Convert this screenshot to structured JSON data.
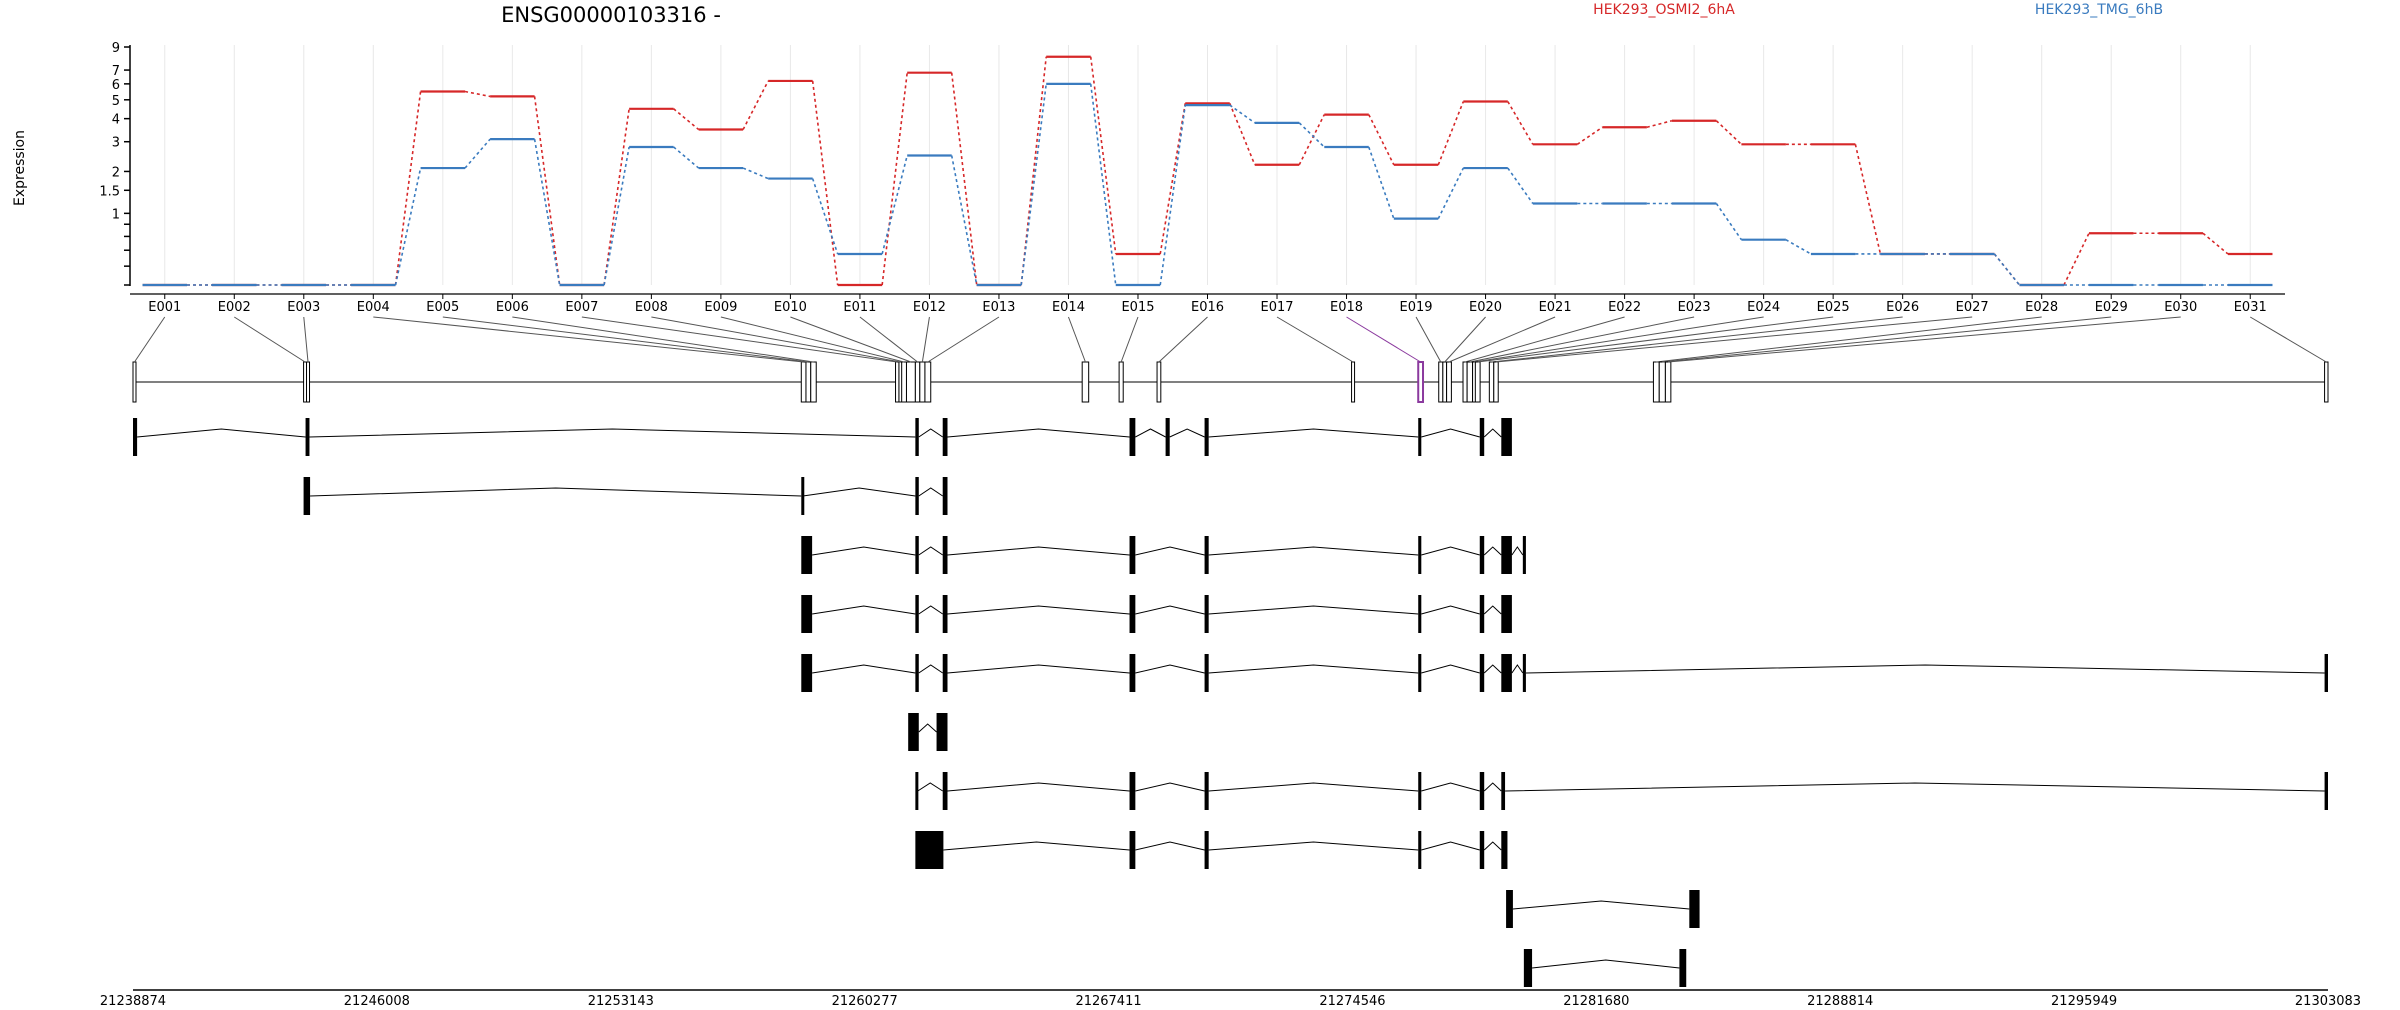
{
  "title": "ENSG00000103316 -",
  "colors": {
    "series_a": "#d62728",
    "series_b": "#3a7bbf",
    "highlight": "#8b3a9e",
    "grid": "#e8e8e8",
    "axis": "#000000"
  },
  "chart_data": {
    "type": "line",
    "ylabel": "Expression",
    "yscale": "log(1+y)",
    "ylim": [
      0,
      9
    ],
    "yticks": [
      {
        "v": 9,
        "label": "9"
      },
      {
        "v": 7,
        "label": "7"
      },
      {
        "v": 6,
        "label": "6"
      },
      {
        "v": 5,
        "label": "5"
      },
      {
        "v": 4,
        "label": "4"
      },
      {
        "v": 3,
        "label": "3"
      },
      {
        "v": 2,
        "label": "2"
      },
      {
        "v": 1.5,
        "label": "1.5"
      },
      {
        "v": 1,
        "label": "1"
      },
      {
        "v": 0.8,
        "label": ""
      },
      {
        "v": 0.6,
        "label": ""
      },
      {
        "v": 0.4,
        "label": ""
      },
      {
        "v": 0.2,
        "label": ""
      },
      {
        "v": 0,
        "label": ""
      }
    ],
    "categories": [
      "E001",
      "E002",
      "E003",
      "E004",
      "E005",
      "E006",
      "E007",
      "E008",
      "E009",
      "E010",
      "E011",
      "E012",
      "E013",
      "E014",
      "E015",
      "E016",
      "E017",
      "E018",
      "E019",
      "E020",
      "E021",
      "E022",
      "E023",
      "E024",
      "E025",
      "E026",
      "E027",
      "E028",
      "E029",
      "E030",
      "E031"
    ],
    "series": [
      {
        "name": "HEK293_OSMI2_6hA",
        "color": "#d62728",
        "values": [
          0,
          0,
          0,
          0,
          5.5,
          5.2,
          0,
          4.5,
          3.5,
          6.2,
          0,
          6.8,
          0,
          8.1,
          0.35,
          4.8,
          2.2,
          4.2,
          2.2,
          4.9,
          2.9,
          3.6,
          3.9,
          2.9,
          2.9,
          0.35,
          0.35,
          0,
          0.65,
          0.65,
          0.35
        ]
      },
      {
        "name": "HEK293_TMG_6hB",
        "color": "#3a7bbf",
        "values": [
          0,
          0,
          0,
          0,
          2.1,
          3.1,
          0,
          2.8,
          2.1,
          1.8,
          0.35,
          2.5,
          0,
          6.0,
          0,
          4.7,
          3.8,
          2.8,
          0.9,
          2.1,
          1.2,
          1.2,
          1.2,
          0.55,
          0.35,
          0.35,
          0.35,
          0,
          0,
          0,
          0
        ]
      }
    ],
    "genome": {
      "start": 21238874,
      "end": 21303083,
      "ticks": [
        "21238874",
        "21246008",
        "21253143",
        "21260277",
        "21267411",
        "21274546",
        "21281680",
        "21288814",
        "21295949",
        "21303083"
      ]
    },
    "exons": [
      {
        "id": "E001",
        "start": 21238874,
        "end": 21238934
      },
      {
        "id": "E002",
        "start": 21243864,
        "end": 21243950
      },
      {
        "id": "E003",
        "start": 21243950,
        "end": 21244036
      },
      {
        "id": "E004",
        "start": 21258423,
        "end": 21258560
      },
      {
        "id": "E005",
        "start": 21258560,
        "end": 21258700
      },
      {
        "id": "E006",
        "start": 21258700,
        "end": 21258860
      },
      {
        "id": "E007",
        "start": 21261180,
        "end": 21261280
      },
      {
        "id": "E008",
        "start": 21261280,
        "end": 21261360
      },
      {
        "id": "E009",
        "start": 21261360,
        "end": 21261500
      },
      {
        "id": "E010",
        "start": 21261500,
        "end": 21261760
      },
      {
        "id": "E011",
        "start": 21261760,
        "end": 21261890
      },
      {
        "id": "E012",
        "start": 21261890,
        "end": 21262040
      },
      {
        "id": "E013",
        "start": 21262040,
        "end": 21262210
      },
      {
        "id": "E014",
        "start": 21266640,
        "end": 21266830
      },
      {
        "id": "E015",
        "start": 21267720,
        "end": 21267840
      },
      {
        "id": "E016",
        "start": 21268830,
        "end": 21268940
      },
      {
        "id": "E017",
        "start": 21274520,
        "end": 21274600
      },
      {
        "id": "E018",
        "start": 21276470,
        "end": 21276610
      },
      {
        "id": "E019",
        "start": 21277070,
        "end": 21277190
      },
      {
        "id": "E020",
        "start": 21277190,
        "end": 21277300
      },
      {
        "id": "E021",
        "start": 21277300,
        "end": 21277440
      },
      {
        "id": "E022",
        "start": 21277780,
        "end": 21277900
      },
      {
        "id": "E023",
        "start": 21277900,
        "end": 21278060
      },
      {
        "id": "E024",
        "start": 21278060,
        "end": 21278140
      },
      {
        "id": "E025",
        "start": 21278140,
        "end": 21278280
      },
      {
        "id": "E026",
        "start": 21278550,
        "end": 21278680
      },
      {
        "id": "E027",
        "start": 21278680,
        "end": 21278810
      },
      {
        "id": "E028",
        "start": 21283350,
        "end": 21283520
      },
      {
        "id": "E029",
        "start": 21283520,
        "end": 21283700
      },
      {
        "id": "E030",
        "start": 21283700,
        "end": 21283860
      },
      {
        "id": "E031",
        "start": 21302983,
        "end": 21303083
      }
    ],
    "highlighted_exon": "E018",
    "transcripts": [
      [
        [
          21238874,
          21238994
        ],
        [
          21243922,
          21244036
        ],
        [
          21261760,
          21261860
        ],
        [
          21262560,
          21262700
        ],
        [
          21268025,
          21268195
        ],
        [
          21269080,
          21269200
        ],
        [
          21270220,
          21270340
        ],
        [
          21276470,
          21276560
        ],
        [
          21278270,
          21278400
        ],
        [
          21278900,
          21279210
        ]
      ],
      [
        [
          21243864,
          21244054
        ],
        [
          21258423,
          21258470
        ],
        [
          21261760,
          21261860
        ],
        [
          21262560,
          21262700
        ]
      ],
      [
        [
          21258423,
          21258740
        ],
        [
          21261760,
          21261860
        ],
        [
          21262560,
          21262700
        ],
        [
          21268025,
          21268195
        ],
        [
          21270220,
          21270340
        ],
        [
          21276470,
          21276560
        ],
        [
          21278270,
          21278400
        ],
        [
          21278900,
          21279210
        ],
        [
          21279530,
          21279620
        ]
      ],
      [
        [
          21258423,
          21258740
        ],
        [
          21261760,
          21261860
        ],
        [
          21262560,
          21262700
        ],
        [
          21268025,
          21268195
        ],
        [
          21270220,
          21270340
        ],
        [
          21276470,
          21276560
        ],
        [
          21278270,
          21278400
        ],
        [
          21278900,
          21279210
        ]
      ],
      [
        [
          21258423,
          21258740
        ],
        [
          21261760,
          21261860
        ],
        [
          21262560,
          21262700
        ],
        [
          21268025,
          21268195
        ],
        [
          21270220,
          21270340
        ],
        [
          21276470,
          21276560
        ],
        [
          21278270,
          21278400
        ],
        [
          21278900,
          21279210
        ],
        [
          21279530,
          21279620
        ],
        [
          21302983,
          21303083
        ]
      ],
      [
        [
          21261550,
          21261860
        ],
        [
          21262380,
          21262700
        ]
      ],
      [
        [
          21261760,
          21261830
        ],
        [
          21262560,
          21262700
        ],
        [
          21268025,
          21268195
        ],
        [
          21270220,
          21270340
        ],
        [
          21276470,
          21276560
        ],
        [
          21278270,
          21278400
        ],
        [
          21278900,
          21279010
        ],
        [
          21302983,
          21303083
        ]
      ],
      [
        [
          21261760,
          21262580
        ],
        [
          21268025,
          21268195
        ],
        [
          21270220,
          21270340
        ],
        [
          21276470,
          21276560
        ],
        [
          21278270,
          21278400
        ],
        [
          21278900,
          21279080
        ]
      ],
      [
        [
          21279040,
          21279240
        ],
        [
          21284400,
          21284700
        ]
      ],
      [
        [
          21279560,
          21279800
        ],
        [
          21284110,
          21284310
        ]
      ]
    ]
  }
}
